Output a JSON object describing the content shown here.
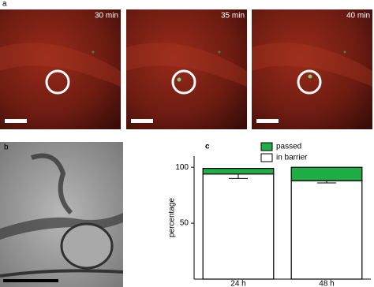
{
  "panels": {
    "a": {
      "label": "a",
      "times": [
        "30 min",
        "35 min",
        "40 min"
      ]
    },
    "b": {
      "label": "b"
    },
    "c": {
      "label": "c"
    }
  },
  "chart_data": {
    "type": "stacked-bar",
    "ylabel": "percentage",
    "categories": [
      "24 h",
      "48 h"
    ],
    "series": [
      {
        "name": "in barrier",
        "color": "#ffffff",
        "values": [
          94,
          88
        ],
        "errors": [
          4,
          2
        ]
      },
      {
        "name": "passed",
        "color": "#1fae45",
        "values": [
          5,
          12
        ]
      }
    ],
    "ylim": [
      0,
      110
    ],
    "yticks": [
      50,
      100
    ],
    "grid": false
  }
}
